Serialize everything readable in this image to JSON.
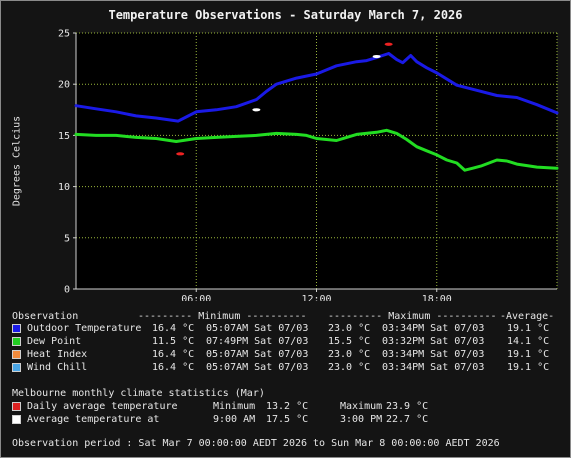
{
  "chart_data": {
    "type": "line",
    "title": "Temperature Observations - Saturday March 7, 2026",
    "ylabel": "Degrees Celcius",
    "xlabel": "",
    "ylim": [
      0,
      25
    ],
    "y_ticks": [
      "0",
      "5",
      "10",
      "15",
      "20",
      "25"
    ],
    "xlim_hours": [
      0,
      24
    ],
    "x_ticks": [
      {
        "hour": 6,
        "label": "06:00"
      },
      {
        "hour": 12,
        "label": "12:00"
      },
      {
        "hour": 18,
        "label": "18:00"
      }
    ],
    "grid": true,
    "series": [
      {
        "name": "Outdoor Temperature",
        "color": "#1a1ae6",
        "x": [
          0,
          1,
          2,
          3,
          4,
          5.1,
          5.5,
          6,
          7,
          8,
          9,
          9.5,
          10,
          11,
          12,
          12.5,
          13,
          14,
          14.5,
          15,
          15.3,
          15.6,
          16,
          16.3,
          16.7,
          17,
          17.5,
          18,
          19,
          20,
          21,
          22,
          23,
          24
        ],
        "values": [
          17.9,
          17.6,
          17.3,
          16.9,
          16.7,
          16.4,
          16.8,
          17.3,
          17.5,
          17.8,
          18.5,
          19.3,
          20.0,
          20.6,
          21.0,
          21.4,
          21.8,
          22.2,
          22.3,
          22.6,
          22.8,
          23.0,
          22.4,
          22.1,
          22.8,
          22.2,
          21.6,
          21.1,
          19.9,
          19.4,
          18.9,
          18.7,
          18.0,
          17.2
        ]
      },
      {
        "name": "Dew Point",
        "color": "#22dd22",
        "x": [
          0,
          1,
          2,
          3,
          4,
          5,
          6,
          7,
          8,
          9,
          10,
          11,
          11.5,
          12,
          12.5,
          13,
          13.5,
          14,
          15,
          15.5,
          16,
          16.5,
          17,
          17.5,
          18,
          18.5,
          19,
          19.4,
          19.8,
          20.2,
          21,
          21.5,
          22,
          23,
          24
        ],
        "values": [
          15.1,
          15.0,
          15.0,
          14.8,
          14.7,
          14.4,
          14.7,
          14.8,
          14.9,
          15.0,
          15.2,
          15.1,
          15.0,
          14.7,
          14.6,
          14.5,
          14.8,
          15.1,
          15.3,
          15.5,
          15.2,
          14.6,
          13.9,
          13.5,
          13.1,
          12.6,
          12.3,
          11.6,
          11.8,
          12.0,
          12.6,
          12.5,
          12.2,
          11.9,
          11.8
        ]
      }
    ],
    "markers": [
      {
        "name": "Daily average temperature minimum",
        "color": "#ee2222",
        "x": 5.2,
        "y": 13.2
      },
      {
        "name": "Daily average temperature maximum",
        "color": "#ee2222",
        "x": 15.6,
        "y": 23.9
      },
      {
        "name": "Average temperature at 9:00 AM",
        "color": "#ffffff",
        "x": 9,
        "y": 17.5
      },
      {
        "name": "Average temperature at 3:00 PM",
        "color": "#ffffff",
        "x": 15,
        "y": 22.7
      }
    ]
  },
  "legend": {
    "header": {
      "observation": "Observation",
      "minimum": "--------- Minimum ----------",
      "maximum": "--------- Maximum ----------",
      "average": "-Average-"
    },
    "rows": [
      {
        "color": "#1a1ae6",
        "name": "Outdoor Temperature",
        "min_val": "16.4 °C",
        "min_time": "05:07AM Sat 07/03",
        "max_val": "23.0 °C",
        "max_time": "03:34PM Sat 07/03",
        "avg": "19.1 °C"
      },
      {
        "color": "#22cc22",
        "name": "Dew Point",
        "min_val": "11.5 °C",
        "min_time": "07:49PM Sat 07/03",
        "max_val": "15.5 °C",
        "max_time": "03:32PM Sat 07/03",
        "avg": "14.1 °C"
      },
      {
        "color": "#f08a3c",
        "name": "Heat Index",
        "min_val": "16.4 °C",
        "min_time": "05:07AM Sat 07/03",
        "max_val": "23.0 °C",
        "max_time": "03:34PM Sat 07/03",
        "avg": "19.1 °C"
      },
      {
        "color": "#4aa6e6",
        "name": "Wind Chill",
        "min_val": "16.4 °C",
        "min_time": "05:07AM Sat 07/03",
        "max_val": "23.0 °C",
        "max_time": "03:34PM Sat 07/03",
        "avg": "19.1 °C"
      }
    ]
  },
  "climate": {
    "title": "Melbourne monthly climate statistics (Mar)",
    "daily_avg": {
      "color": "#dd2222",
      "label": "Daily average temperature",
      "min_label": "Minimum",
      "min_val": "13.2 °C",
      "max_label": "Maximum",
      "max_val": "23.9 °C"
    },
    "avg_at": {
      "color": "#ffffff",
      "label": "Average temperature at",
      "t1_label": "9:00 AM",
      "t1_val": "17.5 °C",
      "t2_label": "3:00 PM",
      "t2_val": "22.7 °C"
    }
  },
  "footer": {
    "period": "Observation period : Sat Mar 7 00:00:00 AEDT 2026 to Sun Mar 8 00:00:00 AEDT 2026"
  }
}
